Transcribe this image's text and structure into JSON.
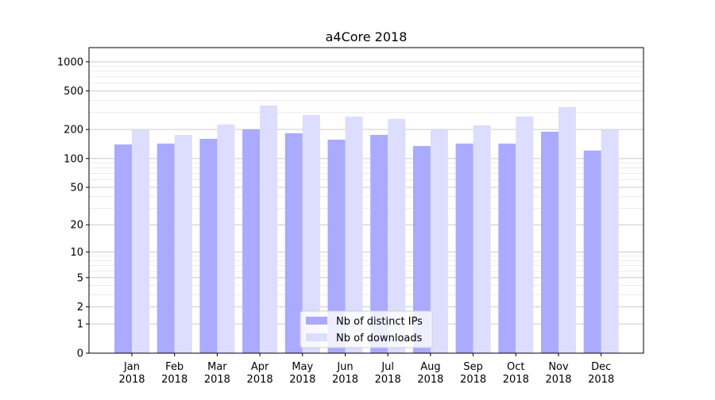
{
  "chart_data": {
    "type": "bar",
    "title": "a4Core 2018",
    "xlabel": "",
    "ylabel": "",
    "yscale": "log10(1+y)",
    "ylim": [
      0,
      1400
    ],
    "yticks": [
      0,
      1,
      2,
      5,
      10,
      20,
      50,
      100,
      200,
      500,
      1000
    ],
    "grid": true,
    "legend_position": "lower center",
    "categories": [
      "Jan\n2018",
      "Feb\n2018",
      "Mar\n2018",
      "Apr\n2018",
      "May\n2018",
      "Jun\n2018",
      "Jul\n2018",
      "Aug\n2018",
      "Sep\n2018",
      "Oct\n2018",
      "Nov\n2018",
      "Dec\n2018"
    ],
    "series": [
      {
        "name": "Nb of distinct IPs",
        "color": "#aaaaff",
        "values": [
          140,
          143,
          160,
          201,
          183,
          157,
          176,
          135,
          143,
          143,
          190,
          121
        ]
      },
      {
        "name": "Nb of downloads",
        "color": "#ddddff",
        "values": [
          198,
          176,
          225,
          355,
          283,
          272,
          257,
          198,
          221,
          272,
          342,
          198
        ]
      }
    ]
  }
}
